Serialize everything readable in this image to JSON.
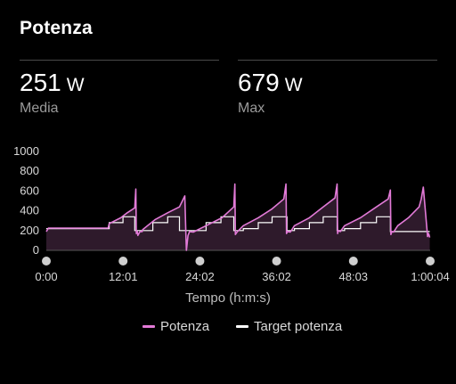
{
  "header": {
    "title": "Potenza"
  },
  "stats": [
    {
      "value": "251",
      "unit": "W",
      "label": "Media"
    },
    {
      "value": "679",
      "unit": "W",
      "label": "Max"
    }
  ],
  "colors": {
    "power": "#e27ad7",
    "target": "#ffffff",
    "area": "#2e1a2b",
    "marker": "#cfcfcf",
    "grid": "#555555"
  },
  "chart_data": {
    "type": "line",
    "title": "",
    "xlabel": "Tempo (h:m:s)",
    "ylabel": "",
    "xlim": [
      0,
      3604
    ],
    "ylim": [
      0,
      1000
    ],
    "y_ticks": [
      0,
      200,
      400,
      600,
      800,
      1000
    ],
    "x_ticks": [
      {
        "t": 0,
        "label": "0:00"
      },
      {
        "t": 721,
        "label": "12:01"
      },
      {
        "t": 1442,
        "label": "24:02"
      },
      {
        "t": 2162,
        "label": "36:02"
      },
      {
        "t": 2883,
        "label": "48:03"
      },
      {
        "t": 3604,
        "label": "1:00:04"
      }
    ],
    "series": [
      {
        "name": "Potenza",
        "x": [
          0,
          20,
          300,
          580,
          590,
          700,
          760,
          830,
          840,
          845,
          855,
          860,
          880,
          900,
          905,
          1020,
          1140,
          1250,
          1300,
          1310,
          1315,
          1330,
          1345,
          1380,
          1500,
          1650,
          1760,
          1770,
          1775,
          1790,
          1850,
          1990,
          2120,
          2230,
          2250,
          2255,
          2265,
          2290,
          2330,
          2470,
          2600,
          2710,
          2730,
          2735,
          2740,
          2760,
          2800,
          2950,
          3100,
          3210,
          3230,
          3235,
          3245,
          3260,
          3300,
          3400,
          3500,
          3520,
          3540,
          3580,
          3590,
          3600
        ],
        "values": [
          190,
          225,
          225,
          225,
          270,
          330,
          380,
          430,
          620,
          170,
          190,
          150,
          190,
          190,
          210,
          310,
          380,
          440,
          550,
          170,
          0,
          150,
          190,
          185,
          250,
          330,
          440,
          670,
          160,
          185,
          250,
          330,
          420,
          520,
          670,
          170,
          190,
          185,
          250,
          330,
          440,
          530,
          670,
          170,
          200,
          190,
          250,
          330,
          440,
          520,
          610,
          160,
          190,
          185,
          250,
          330,
          440,
          520,
          640,
          140,
          170,
          130
        ]
      },
      {
        "name": "Target potenza",
        "x": [
          0,
          590,
          590,
          720,
          720,
          830,
          830,
          1000,
          1000,
          1140,
          1140,
          1250,
          1250,
          1340,
          1340,
          1500,
          1500,
          1640,
          1640,
          1760,
          1760,
          1850,
          1850,
          1990,
          1990,
          2120,
          2120,
          2260,
          2260,
          2330,
          2330,
          2470,
          2470,
          2600,
          2600,
          2730,
          2730,
          2800,
          2800,
          2950,
          2950,
          3100,
          3100,
          3230,
          3230,
          3300,
          3300,
          3600
        ],
        "values": [
          220,
          220,
          280,
          280,
          340,
          340,
          200,
          200,
          280,
          280,
          340,
          340,
          200,
          200,
          200,
          200,
          280,
          280,
          340,
          340,
          200,
          200,
          220,
          220,
          280,
          280,
          340,
          340,
          200,
          200,
          220,
          220,
          280,
          280,
          340,
          340,
          200,
          200,
          220,
          220,
          280,
          280,
          340,
          340,
          190,
          190,
          190,
          190
        ]
      }
    ],
    "interval_markers": [
      0,
      721,
      1442,
      2162,
      2883,
      3604
    ],
    "legend": [
      "Potenza",
      "Target potenza"
    ],
    "legend_position": "bottom"
  }
}
